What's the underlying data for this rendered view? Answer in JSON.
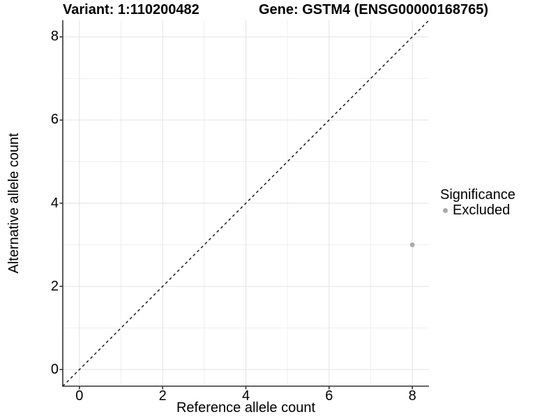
{
  "header": {
    "variant_title": "Variant: 1:110200482",
    "gene_title": "Gene: GSTM4 (ENSG00000168765)"
  },
  "colors": {
    "background": "#ffffff",
    "text": "#000000",
    "axis_line": "#333333",
    "grid_major": "#e2e2e2",
    "grid_minor": "#efefef",
    "excluded_point": "#ababab",
    "identity_line": "#000000"
  },
  "chart_data": {
    "type": "scatter",
    "title_left": "Variant: 1:110200482",
    "title_right": "Gene: GSTM4 (ENSG00000168765)",
    "xlabel": "Reference allele count",
    "ylabel": "Alternative allele count",
    "xlim": [
      -0.4,
      8.4
    ],
    "ylim": [
      -0.4,
      8.4
    ],
    "x_ticks": [
      0,
      2,
      4,
      6,
      8
    ],
    "x_tick_labels": [
      "0",
      "2",
      "4",
      "6",
      "8"
    ],
    "y_ticks": [
      0,
      2,
      4,
      6,
      8
    ],
    "y_tick_labels": [
      "0",
      "2",
      "4",
      "6",
      "8"
    ],
    "minor_ticks": [
      1,
      3,
      5,
      7
    ],
    "grid": true,
    "identity_line": {
      "style": "dashed",
      "from": [
        -0.4,
        -0.4
      ],
      "to": [
        8.4,
        8.4
      ]
    },
    "points": [
      {
        "x": 8,
        "y": 3,
        "series": "Excluded",
        "color": "#ababab",
        "radius": 3.4
      }
    ],
    "legend": {
      "title": "Significance",
      "position": "right",
      "items": [
        {
          "label": "Excluded",
          "color": "#ababab"
        }
      ]
    }
  }
}
